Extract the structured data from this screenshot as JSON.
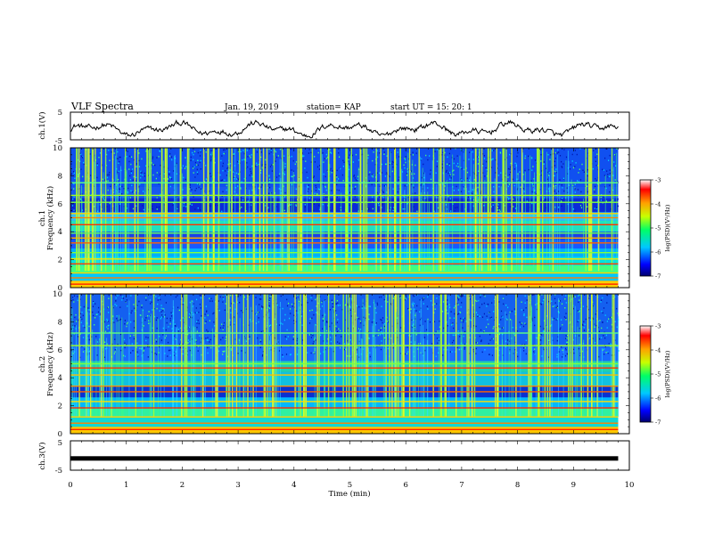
{
  "chart_data": {
    "type": "heatmap",
    "title": "VLF Spectra",
    "header": {
      "date": "Jan. 19, 2019",
      "station": "station= KAP",
      "start": "start  UT =   15: 20: 1"
    },
    "xlabel": "Time  (min)",
    "xlim": [
      0,
      10
    ],
    "xticks": [
      "0",
      "1",
      "2",
      "3",
      "4",
      "5",
      "6",
      "7",
      "8",
      "9",
      "10"
    ],
    "data_end_min": 9.8,
    "panels": [
      {
        "id": "ch1_waveform",
        "type": "line",
        "ylabel": "ch.1(V)",
        "ylim": [
          -5,
          5
        ],
        "yticks": [
          "5",
          "-5"
        ]
      },
      {
        "id": "ch1_spectrogram",
        "type": "heatmap",
        "ylabel": "ch.1",
        "ylabel2": "Frequency  (kHz)",
        "ylim": [
          0,
          10
        ],
        "yticks": [
          "0",
          "2",
          "4",
          "6",
          "8",
          "10"
        ],
        "colorbar": {
          "label": "log(PSD)(V²/Hz)",
          "range": [
            -7,
            -3
          ],
          "ticks": [
            "-3",
            "-4",
            "-5",
            "-6",
            "-7"
          ]
        }
      },
      {
        "id": "ch2_spectrogram",
        "type": "heatmap",
        "ylabel": "ch.2",
        "ylabel2": "Frequency  (kHz)",
        "ylim": [
          0,
          10
        ],
        "yticks": [
          "0",
          "2",
          "4",
          "6",
          "8",
          "10"
        ],
        "colorbar": {
          "label": "log(PSD)(V²/Hz)",
          "range": [
            -7,
            -3
          ],
          "ticks": [
            "-3",
            "-4",
            "-5",
            "-6",
            "-7"
          ]
        }
      },
      {
        "id": "ch3_waveform",
        "type": "line",
        "ylabel": "ch.3(V)",
        "ylim": [
          -5,
          5
        ],
        "yticks": [
          "5",
          "-5"
        ],
        "constant_value": -1
      }
    ]
  }
}
